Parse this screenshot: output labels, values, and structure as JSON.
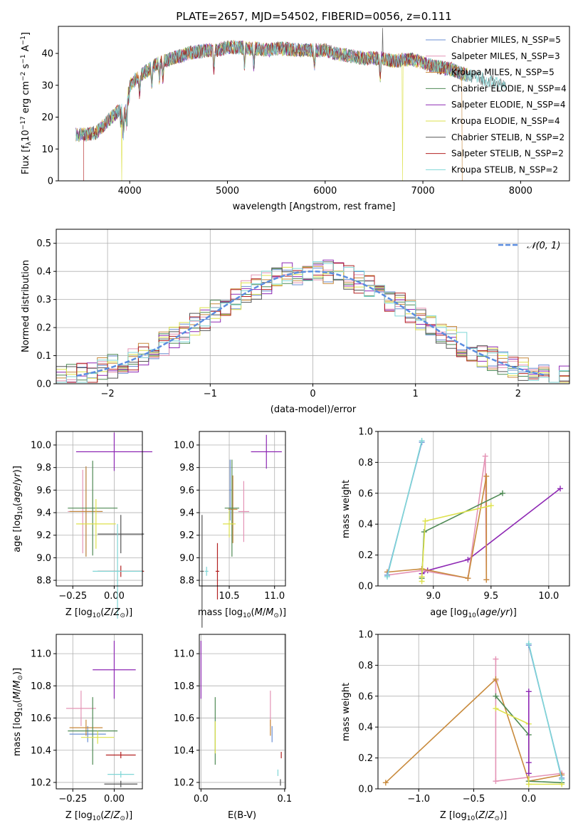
{
  "chart_data": [
    {
      "type": "line",
      "title": "PLATE=2657, MJD=54502, FIBERID=0056, z=0.111",
      "xlabel": "wavelength [Angstrom, rest frame]",
      "ylabel": "Flux [f_λ 10^{-17} erg cm^{-2} s^{-1} A^{-1}]",
      "xlim": [
        3270,
        8500
      ],
      "ylim": [
        0,
        48.5
      ],
      "xticks": [
        4000,
        5000,
        6000,
        7000,
        8000
      ],
      "yticks": [
        0,
        10,
        20,
        30,
        40
      ],
      "legend_position": "top-right",
      "series": [
        {
          "name": "Chabrier MILES, N_SSP=5",
          "color": "#6a8fd4"
        },
        {
          "name": "Salpeter MILES, N_SSP=3",
          "color": "#e493b5"
        },
        {
          "name": "Kroupa MILES, N_SSP=5",
          "color": "#c88a3c"
        },
        {
          "name": "Chabrier ELODIE, N_SSP=4",
          "color": "#4f8a55"
        },
        {
          "name": "Salpeter ELODIE, N_SSP=4",
          "color": "#8e28b4"
        },
        {
          "name": "Kroupa ELODIE, N_SSP=4",
          "color": "#dde14c"
        },
        {
          "name": "Chabrier STELIB, N_SSP=2",
          "color": "#555555"
        },
        {
          "name": "Salpeter STELIB, N_SSP=2",
          "color": "#b22222"
        },
        {
          "name": "Kroupa STELIB, N_SSP=2",
          "color": "#7fd6d6"
        }
      ],
      "continuum": {
        "x": [
          3450,
          3550,
          3650,
          3750,
          3850,
          3950,
          4000,
          4100,
          4200,
          4300,
          4400,
          4500,
          4600,
          4700,
          4800,
          4900,
          5000,
          5100,
          5200,
          5300,
          5400,
          5500,
          5600,
          5700,
          5800,
          5900,
          6000,
          6100,
          6200,
          6300,
          6400,
          6500,
          6600,
          6700,
          6800,
          6900,
          7000,
          7100,
          7200,
          7300,
          7400,
          7500,
          7600,
          7700,
          7800
        ],
        "y": [
          14.5,
          14.5,
          15,
          18,
          21,
          23,
          30,
          33,
          35,
          37,
          38,
          39,
          40,
          40.5,
          41,
          41,
          42,
          42,
          41.5,
          41.5,
          41,
          41.5,
          41.5,
          41,
          41,
          41,
          41,
          40,
          39.5,
          39,
          38.5,
          38.5,
          38.5,
          37.5,
          38,
          38,
          37,
          36,
          35.5,
          35,
          33.5,
          33,
          32,
          31,
          30
        ]
      },
      "features": [
        {
          "note": "red edge drop",
          "x": 3530
        },
        {
          "note": "yellow drop",
          "x": 3920
        },
        {
          "note": "yellow drop",
          "x": 6790
        },
        {
          "note": "orange drop",
          "x": 7400
        },
        {
          "note": "grey spike",
          "x": 6585,
          "y": 48
        }
      ]
    },
    {
      "type": "line",
      "xlabel": "(data-model)/error",
      "ylabel": "Normed distribution",
      "xlim": [
        -2.5,
        2.5
      ],
      "ylim": [
        0,
        0.55
      ],
      "xticks": [
        -2,
        -1,
        0,
        1,
        2
      ],
      "yticks": [
        0.0,
        0.1,
        0.2,
        0.3,
        0.4,
        0.5
      ],
      "legend": [
        {
          "name": "N(0,1)",
          "style": "dashed",
          "color": "#5b8de0"
        }
      ],
      "histogram_bin_width": 0.1,
      "histogram_colors": [
        "#6a8fd4",
        "#e493b5",
        "#c88a3c",
        "#4f8a55",
        "#8e28b4",
        "#dde14c",
        "#555555",
        "#b22222",
        "#7fd6d6"
      ]
    },
    {
      "type": "scatter",
      "subtype": "error-bars",
      "xlabel": "Z [log10(Z/Z_sun)]",
      "ylabel": "age  [log10(age/yr)]",
      "xlim": [
        -0.35,
        0.17
      ],
      "ylim": [
        8.75,
        10.12
      ],
      "xticks": [
        -0.25,
        0.0
      ],
      "xtick_labels": [
        "−0.25",
        "0.00"
      ],
      "yticks": [
        8.8,
        9.0,
        9.2,
        9.4,
        9.6,
        9.8,
        10.0
      ],
      "points": [
        {
          "color": "#6a8fd4",
          "x": -0.17,
          "xerr": 0.1,
          "y": 9.41,
          "yerr": 0.4
        },
        {
          "color": "#e493b5",
          "x": -0.19,
          "xerr": 0.09,
          "y": 9.41,
          "yerr": 0.37
        },
        {
          "color": "#c88a3c",
          "x": -0.17,
          "xerr": 0.1,
          "y": 9.41,
          "yerr": 0.4
        },
        {
          "color": "#4f8a55",
          "x": -0.13,
          "xerr": 0.15,
          "y": 9.44,
          "yerr": 0.42
        },
        {
          "color": "#8e28b4",
          "x": 0.0,
          "xerr": 0.23,
          "y": 9.94,
          "yerr": 0.17
        },
        {
          "color": "#dde14c",
          "x": -0.11,
          "xerr": 0.12,
          "y": 9.3,
          "yerr": 0.22
        },
        {
          "color": "#555555",
          "x": 0.04,
          "xerr": 0.14,
          "y": 9.21,
          "yerr": 0.17
        },
        {
          "color": "#b22222",
          "x": 0.04,
          "xerr": 0.14,
          "y": 8.88,
          "yerr": 0.05
        },
        {
          "color": "#7fd6d6",
          "x": 0.02,
          "xerr": 0.15,
          "y": 8.88,
          "yerr": 0.42
        }
      ]
    },
    {
      "type": "scatter",
      "subtype": "error-bars",
      "xlabel": "mass [log10(M/M_sun)]",
      "xlim": [
        10.17,
        11.12
      ],
      "ylim": [
        8.75,
        10.12
      ],
      "xticks": [
        10.5,
        11.0
      ],
      "yticks": [
        8.8,
        9.0,
        9.2,
        9.4,
        9.6,
        9.8,
        10.0
      ],
      "points": [
        {
          "color": "#6a8fd4",
          "x": 10.51,
          "xerr": 0.01,
          "y": 9.6,
          "yerr": 0.27
        },
        {
          "color": "#e493b5",
          "x": 10.66,
          "xerr": 0.06,
          "y": 9.41,
          "yerr": 0.27
        },
        {
          "color": "#c88a3c",
          "x": 10.54,
          "xerr": 0.05,
          "y": 9.43,
          "yerr": 0.3
        },
        {
          "color": "#4f8a55",
          "x": 10.53,
          "xerr": 0.08,
          "y": 9.44,
          "yerr": 0.43
        },
        {
          "color": "#8e28b4",
          "x": 10.91,
          "xerr": 0.17,
          "y": 9.94,
          "yerr": 0.15
        },
        {
          "color": "#dde14c",
          "x": 10.5,
          "xerr": 0.07,
          "y": 9.3,
          "yerr": 0.12
        },
        {
          "color": "#555555",
          "x": 10.2,
          "xerr": 0.02,
          "y": 8.88,
          "yerr": 0.5
        },
        {
          "color": "#b22222",
          "x": 10.37,
          "xerr": 0.02,
          "y": 8.88,
          "yerr": 0.25
        },
        {
          "color": "#7fd6d6",
          "x": 10.25,
          "xerr": 0.02,
          "y": 8.88,
          "yerr": 0.04
        }
      ]
    },
    {
      "type": "line",
      "xlabel": "age  [log10(age/yr)]",
      "ylabel": "mass weight",
      "xlim": [
        8.52,
        10.18
      ],
      "ylim": [
        0,
        1.0
      ],
      "xticks": [
        9.0,
        9.5,
        10.0
      ],
      "yticks": [
        0.0,
        0.2,
        0.4,
        0.6,
        0.8,
        1.0
      ],
      "series": [
        {
          "color": "#8e28b4",
          "x": [
            8.9,
            8.95,
            9.3,
            10.1
          ],
          "y": [
            0.08,
            0.1,
            0.17,
            0.63
          ]
        },
        {
          "color": "#e493b5",
          "x": [
            8.6,
            8.9,
            9.3,
            9.45,
            9.46
          ],
          "y": [
            0.07,
            0.1,
            0.05,
            0.84,
            0.04
          ]
        },
        {
          "color": "#c88a3c",
          "x": [
            8.6,
            8.9,
            9.3,
            9.46,
            9.46
          ],
          "y": [
            0.09,
            0.11,
            0.05,
            0.71,
            0.04
          ]
        },
        {
          "color": "#4f8a55",
          "x": [
            8.9,
            8.92,
            9.6
          ],
          "y": [
            0.05,
            0.35,
            0.6
          ]
        },
        {
          "color": "#dde14c",
          "x": [
            8.9,
            8.9,
            8.93,
            9.5
          ],
          "y": [
            0.03,
            0.06,
            0.42,
            0.52
          ]
        },
        {
          "color": "#6a8fd4",
          "x": [
            8.6,
            8.9
          ],
          "y": [
            0.07,
            0.93
          ]
        },
        {
          "color": "#7fd6d6",
          "x": [
            8.6,
            8.9
          ],
          "y": [
            0.06,
            0.94
          ]
        }
      ]
    },
    {
      "type": "scatter",
      "subtype": "error-bars",
      "xlabel": "Z [log10(Z/Z_sun)]",
      "ylabel": "mass [log10(M/M_sun)]",
      "xlim": [
        -0.35,
        0.17
      ],
      "ylim": [
        10.16,
        11.12
      ],
      "xticks": [
        -0.25,
        0.0
      ],
      "xtick_labels": [
        "−0.25",
        "0.00"
      ],
      "yticks": [
        10.2,
        10.4,
        10.6,
        10.8,
        11.0
      ],
      "points": [
        {
          "color": "#6a8fd4",
          "x": -0.16,
          "xerr": 0.11,
          "y": 10.5,
          "yerr": 0.05
        },
        {
          "color": "#e493b5",
          "x": -0.2,
          "xerr": 0.09,
          "y": 10.66,
          "yerr": 0.11
        },
        {
          "color": "#c88a3c",
          "x": -0.17,
          "xerr": 0.1,
          "y": 10.54,
          "yerr": 0.05
        },
        {
          "color": "#4f8a55",
          "x": -0.13,
          "xerr": 0.15,
          "y": 10.52,
          "yerr": 0.21
        },
        {
          "color": "#8e28b4",
          "x": 0.0,
          "xerr": 0.13,
          "y": 10.9,
          "yerr": 0.18
        },
        {
          "color": "#dde14c",
          "x": -0.1,
          "xerr": 0.1,
          "y": 10.48,
          "yerr": 0.04
        },
        {
          "color": "#555555",
          "x": 0.04,
          "xerr": 0.1,
          "y": 10.19,
          "yerr": 0.02
        },
        {
          "color": "#b22222",
          "x": 0.04,
          "xerr": 0.09,
          "y": 10.37,
          "yerr": 0.02
        },
        {
          "color": "#7fd6d6",
          "x": 0.04,
          "xerr": 0.08,
          "y": 10.25,
          "yerr": 0.02
        }
      ]
    },
    {
      "type": "scatter",
      "subtype": "error-bars",
      "xlabel": "E(B-V)",
      "xlim": [
        -0.002,
        0.101
      ],
      "ylim": [
        10.16,
        11.12
      ],
      "xticks": [
        0.0,
        0.1
      ],
      "xtick_labels": [
        "0.0",
        "0.1"
      ],
      "yticks": [
        10.2,
        10.4,
        10.6,
        10.8,
        11.0
      ],
      "points": [
        {
          "color": "#6a8fd4",
          "x": 0.085,
          "xerr": 0,
          "y": 10.5,
          "yerr": 0.05
        },
        {
          "color": "#e493b5",
          "x": 0.083,
          "xerr": 0,
          "y": 10.66,
          "yerr": 0.11
        },
        {
          "color": "#c88a3c",
          "x": 0.083,
          "xerr": 0,
          "y": 10.54,
          "yerr": 0.05
        },
        {
          "color": "#4f8a55",
          "x": 0.017,
          "xerr": 0,
          "y": 10.52,
          "yerr": 0.21
        },
        {
          "color": "#8e28b4",
          "x": 0.0,
          "xerr": 0,
          "y": 10.9,
          "yerr": 0.18
        },
        {
          "color": "#dde14c",
          "x": 0.017,
          "xerr": 0,
          "y": 10.48,
          "yerr": 0.1
        },
        {
          "color": "#555555",
          "x": 0.095,
          "xerr": 0,
          "y": 10.2,
          "yerr": 0.02
        },
        {
          "color": "#b22222",
          "x": 0.096,
          "xerr": 0,
          "y": 10.37,
          "yerr": 0.02
        },
        {
          "color": "#7fd6d6",
          "x": 0.092,
          "xerr": 0,
          "y": 10.26,
          "yerr": 0.02
        }
      ]
    },
    {
      "type": "line",
      "xlabel": "Z [log10(Z/Z_sun)]",
      "ylabel": "mass weight",
      "xlim": [
        -1.37,
        0.37
      ],
      "ylim": [
        0,
        1.0
      ],
      "xticks": [
        -1.0,
        -0.5,
        0.0
      ],
      "xtick_labels": [
        "−1.0",
        "−0.5",
        "0.0"
      ],
      "yticks": [
        0.0,
        0.2,
        0.4,
        0.6,
        0.8,
        1.0
      ],
      "series": [
        {
          "color": "#e493b5",
          "x": [
            -0.3,
            -0.3,
            -0.3,
            0.3
          ],
          "y": [
            0.84,
            0.7,
            0.05,
            0.1
          ]
        },
        {
          "color": "#c88a3c",
          "x": [
            -1.3,
            -0.3,
            0.0,
            0.3
          ],
          "y": [
            0.04,
            0.71,
            0.05,
            0.09
          ]
        },
        {
          "color": "#4f8a55",
          "x": [
            -0.3,
            0.0,
            0.0,
            0.3
          ],
          "y": [
            0.6,
            0.35,
            0.05,
            0.04
          ]
        },
        {
          "color": "#dde14c",
          "x": [
            -0.3,
            0.0,
            0.0,
            0.3
          ],
          "y": [
            0.52,
            0.42,
            0.03,
            0.03
          ]
        },
        {
          "color": "#8e28b4",
          "x": [
            0.0,
            0.0,
            0.0
          ],
          "y": [
            0.63,
            0.17,
            0.1
          ]
        },
        {
          "color": "#6a8fd4",
          "x": [
            0.0,
            0.3
          ],
          "y": [
            0.93,
            0.07
          ]
        },
        {
          "color": "#7fd6d6",
          "x": [
            0.0,
            0.3
          ],
          "y": [
            0.94,
            0.06
          ]
        }
      ]
    }
  ]
}
